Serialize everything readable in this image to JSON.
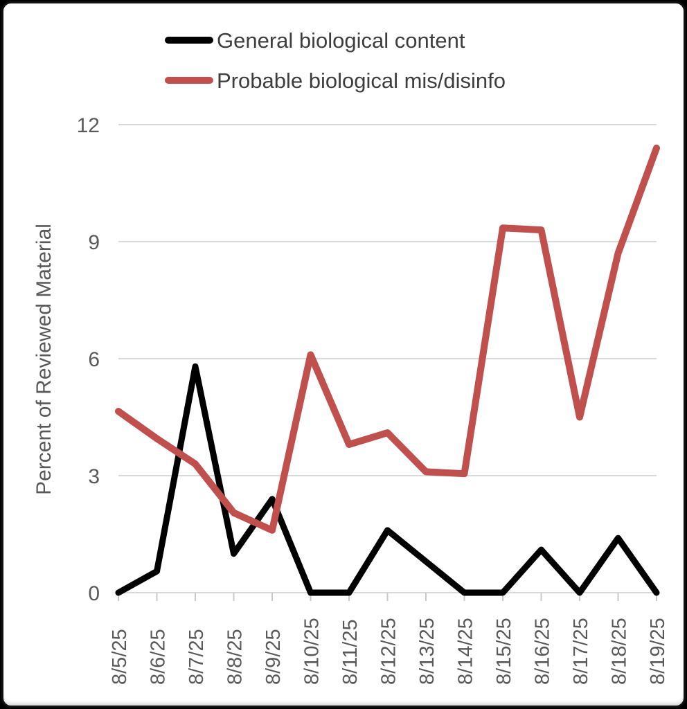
{
  "legend": {
    "items": [
      {
        "label": "General biological content",
        "color": "#000000"
      },
      {
        "label": "Probable biological mis/disinfo",
        "color": "#c0504d"
      }
    ]
  },
  "chart_data": {
    "type": "line",
    "title": "",
    "xlabel": "",
    "ylabel": "Percent of Reviewed Material",
    "ylim": [
      0,
      12
    ],
    "yticks": [
      0,
      3,
      6,
      9,
      12
    ],
    "grid": true,
    "legend_position": "top-left",
    "categories": [
      "8/5/25",
      "8/6/25",
      "8/7/25",
      "8/8/25",
      "8/9/25",
      "8/10/25",
      "8/11/25",
      "8/12/25",
      "8/13/25",
      "8/14/25",
      "8/15/25",
      "8/16/25",
      "8/17/25",
      "8/18/25",
      "8/19/25"
    ],
    "series": [
      {
        "name": "General biological content",
        "color": "#000000",
        "values": [
          0,
          0.55,
          5.8,
          1.0,
          2.4,
          0,
          0,
          1.6,
          0.8,
          0,
          0,
          1.1,
          0,
          1.4,
          0
        ]
      },
      {
        "name": "Probable biological mis/disinfo",
        "color": "#c0504d",
        "values": [
          4.65,
          3.95,
          3.3,
          2.05,
          1.6,
          6.1,
          3.8,
          4.1,
          3.1,
          3.05,
          9.35,
          9.3,
          4.5,
          8.7,
          11.4
        ]
      }
    ]
  },
  "style": {
    "grid_color": "#d9d9d9",
    "tick_color": "#c9c9c9",
    "axis_text_color": "#595959",
    "legend_text_color": "#3d3d3d"
  }
}
